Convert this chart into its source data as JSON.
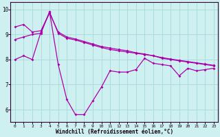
{
  "bg_color": "#cff0f0",
  "grid_color": "#aadddd",
  "line_color": "#aa00aa",
  "xlim": [
    -0.5,
    23.5
  ],
  "ylim": [
    5.5,
    10.3
  ],
  "yticks": [
    6,
    7,
    8,
    9,
    10
  ],
  "xticks": [
    0,
    1,
    2,
    3,
    4,
    5,
    6,
    7,
    8,
    9,
    10,
    11,
    12,
    13,
    14,
    15,
    16,
    17,
    18,
    19,
    20,
    21,
    22,
    23
  ],
  "xlabel": "Windchill (Refroidissement éolien,°C)",
  "line1_x": [
    0,
    1,
    2,
    3,
    4,
    5,
    6,
    7,
    8,
    9,
    10,
    11,
    12,
    13,
    14,
    15,
    16,
    17,
    18,
    19,
    20,
    21,
    22,
    23
  ],
  "line1_y": [
    8.0,
    8.15,
    8.0,
    9.1,
    9.9,
    7.8,
    6.4,
    5.8,
    5.8,
    6.35,
    6.9,
    7.55,
    7.5,
    7.5,
    7.6,
    8.05,
    7.85,
    7.8,
    7.75,
    7.35,
    7.65,
    7.55,
    7.6,
    7.65
  ],
  "line2_x": [
    0,
    1,
    2,
    3,
    4,
    5,
    6,
    7,
    8,
    9,
    10,
    11,
    12,
    13,
    14,
    15,
    16,
    17,
    18,
    19,
    20,
    21,
    22,
    23
  ],
  "line2_y": [
    8.8,
    8.9,
    9.0,
    9.05,
    9.9,
    9.05,
    8.85,
    8.78,
    8.68,
    8.58,
    8.48,
    8.4,
    8.35,
    8.3,
    8.25,
    8.2,
    8.15,
    8.05,
    8.0,
    7.95,
    7.9,
    7.85,
    7.8,
    7.75
  ],
  "line3_x": [
    0,
    1,
    2,
    3,
    4,
    5,
    6,
    7,
    8,
    9,
    10,
    11,
    12,
    13,
    14,
    15,
    16,
    17,
    18,
    19,
    20,
    21,
    22,
    23
  ],
  "line3_y": [
    9.3,
    9.4,
    9.1,
    9.15,
    9.85,
    9.1,
    8.9,
    8.82,
    8.72,
    8.62,
    8.52,
    8.46,
    8.4,
    8.35,
    8.27,
    8.22,
    8.15,
    8.08,
    8.02,
    7.97,
    7.92,
    7.87,
    7.82,
    7.77
  ]
}
